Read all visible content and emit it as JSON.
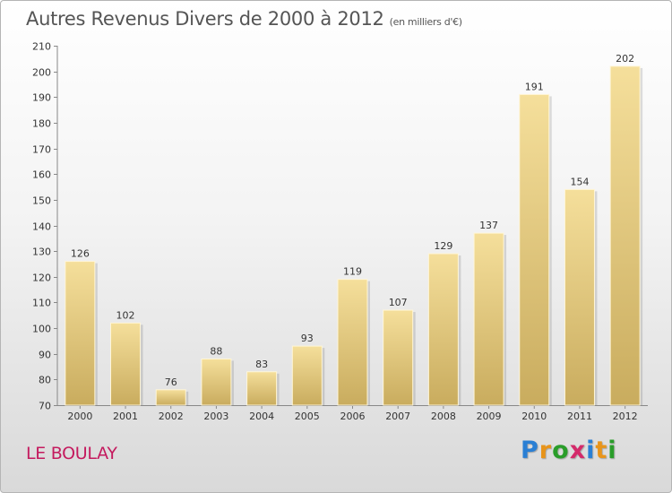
{
  "header": {
    "title": "Autres Revenus Divers de 2000 à 2012",
    "unit": "(en milliers d'€)"
  },
  "footer": {
    "city": "LE BOULAY",
    "logo_letters": [
      "P",
      "r",
      "o",
      "x",
      "i",
      "t",
      "i"
    ],
    "logo_colors": [
      "#2a7fd4",
      "#e8941a",
      "#2a9d2a",
      "#d42a6a",
      "#2a7fd4",
      "#e8941a",
      "#2a9d2a"
    ]
  },
  "colors": {
    "bar_top": "#f5df9b",
    "bar_bottom": "#c9ac5e",
    "city": "#c41a5e"
  },
  "chart_data": {
    "type": "bar",
    "categories": [
      "2000",
      "2001",
      "2002",
      "2003",
      "2004",
      "2005",
      "2006",
      "2007",
      "2008",
      "2009",
      "2010",
      "2011",
      "2012"
    ],
    "values": [
      126,
      102,
      76,
      88,
      83,
      93,
      119,
      107,
      129,
      137,
      191,
      154,
      202
    ],
    "title": "Autres Revenus Divers de 2000 à 2012",
    "xlabel": "",
    "ylabel": "",
    "ylim": [
      70,
      210
    ],
    "yticks": [
      70,
      80,
      90,
      100,
      110,
      120,
      130,
      140,
      150,
      160,
      170,
      180,
      190,
      200,
      210
    ],
    "grid": false,
    "data_labels": true
  }
}
